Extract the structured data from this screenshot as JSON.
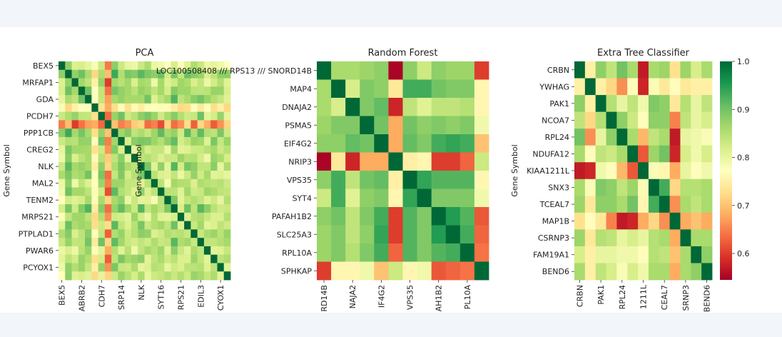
{
  "chart_data": [
    {
      "type": "heatmap",
      "title": "PCA",
      "ylabel": "Gene Symbol",
      "matrix_size": 26,
      "row_tick_labels": [
        "BEX5",
        "MRFAP1",
        "GDA",
        "PCDH7",
        "PPP1CB",
        "CREG2",
        "NLK",
        "MAL2",
        "TENM2",
        "MRPS21",
        "PTPLAD1",
        "PWAR6",
        "PCYOX1"
      ],
      "col_tick_labels": [
        "BEX5",
        "ABRB2",
        "CDH7",
        "SRP14",
        "NLK",
        "SYT16",
        "RPS21",
        "EDIL3",
        "CYOX1"
      ]
    },
    {
      "type": "heatmap",
      "title": "Random Forest",
      "ylabel": "Gene Symbol",
      "row_tick_labels": [
        "LOC100508408 /// RPS13 /// SNORD14B",
        "MAP4",
        "DNAJA2",
        "PSMA5",
        "EIF4G2",
        "NRIP3",
        "VPS35",
        "SYT4",
        "PAFAH1B2",
        "SLC25A3",
        "RPL10A",
        "SPHKAP"
      ],
      "col_tick_labels": [
        "RD14B",
        "NAJA2",
        "IF4G2",
        "VPS35",
        "AH1B2",
        "PL10A"
      ],
      "values": [
        [
          1.0,
          0.86,
          0.86,
          0.87,
          0.88,
          0.55,
          0.88,
          0.83,
          0.88,
          0.87,
          0.87,
          0.6
        ],
        [
          0.86,
          1.0,
          0.82,
          0.89,
          0.88,
          0.74,
          0.93,
          0.93,
          0.9,
          0.89,
          0.89,
          0.76
        ],
        [
          0.86,
          0.82,
          1.0,
          0.89,
          0.91,
          0.58,
          0.84,
          0.81,
          0.84,
          0.84,
          0.85,
          0.76
        ],
        [
          0.87,
          0.89,
          0.89,
          1.0,
          0.9,
          0.68,
          0.9,
          0.88,
          0.89,
          0.88,
          0.89,
          0.79
        ],
        [
          0.88,
          0.88,
          0.91,
          0.9,
          1.0,
          0.68,
          0.91,
          0.89,
          0.93,
          0.94,
          0.93,
          0.7
        ],
        [
          0.55,
          0.74,
          0.58,
          0.68,
          0.68,
          1.0,
          0.75,
          0.76,
          0.6,
          0.6,
          0.63,
          0.83
        ],
        [
          0.88,
          0.93,
          0.84,
          0.9,
          0.91,
          0.75,
          1.0,
          0.94,
          0.92,
          0.92,
          0.92,
          0.76
        ],
        [
          0.83,
          0.93,
          0.81,
          0.88,
          0.89,
          0.76,
          0.94,
          1.0,
          0.89,
          0.89,
          0.89,
          0.79
        ],
        [
          0.88,
          0.9,
          0.84,
          0.89,
          0.93,
          0.6,
          0.92,
          0.89,
          1.0,
          0.95,
          0.92,
          0.62
        ],
        [
          0.87,
          0.89,
          0.84,
          0.88,
          0.94,
          0.6,
          0.92,
          0.89,
          0.95,
          1.0,
          0.93,
          0.63
        ],
        [
          0.87,
          0.89,
          0.85,
          0.89,
          0.93,
          0.63,
          0.92,
          0.89,
          0.92,
          0.93,
          1.0,
          0.64
        ],
        [
          0.6,
          0.76,
          0.76,
          0.79,
          0.7,
          0.83,
          0.76,
          0.79,
          0.62,
          0.63,
          0.64,
          1.0
        ]
      ]
    },
    {
      "type": "heatmap",
      "title": "Extra Tree Classifier",
      "ylabel": "Gene Symbol",
      "row_tick_labels": [
        "CRBN",
        "YWHAG",
        "PAK1",
        "NCOA7",
        "RPL24",
        "NDUFA12",
        "KIAA1211L",
        "SNX3",
        "TCEAL7",
        "MAP1B",
        "CSRNP3",
        "FAM19A1",
        "BEND6"
      ],
      "col_tick_labels": [
        "CRBN",
        "PAK1",
        "RPL24",
        "1211L",
        "CEAL7",
        "SRNP3",
        "BEND6"
      ],
      "values": [
        [
          1.0,
          0.75,
          0.88,
          0.84,
          0.9,
          0.86,
          0.57,
          0.86,
          0.87,
          0.73,
          0.87,
          0.82,
          0.86
        ],
        [
          0.75,
          1.0,
          0.75,
          0.72,
          0.66,
          0.77,
          0.58,
          0.78,
          0.74,
          0.77,
          0.74,
          0.75,
          0.75
        ],
        [
          0.88,
          0.75,
          1.0,
          0.85,
          0.8,
          0.84,
          0.79,
          0.89,
          0.88,
          0.74,
          0.85,
          0.8,
          0.84
        ],
        [
          0.84,
          0.72,
          0.85,
          1.0,
          0.88,
          0.83,
          0.77,
          0.88,
          0.88,
          0.65,
          0.84,
          0.8,
          0.82
        ],
        [
          0.9,
          0.66,
          0.8,
          0.88,
          1.0,
          0.86,
          0.69,
          0.84,
          0.86,
          0.57,
          0.8,
          0.79,
          0.78
        ],
        [
          0.86,
          0.77,
          0.84,
          0.83,
          0.86,
          1.0,
          0.62,
          0.87,
          0.9,
          0.58,
          0.82,
          0.79,
          0.82
        ],
        [
          0.57,
          0.58,
          0.79,
          0.77,
          0.69,
          0.62,
          1.0,
          0.78,
          0.76,
          0.68,
          0.8,
          0.77,
          0.79
        ],
        [
          0.86,
          0.78,
          0.89,
          0.88,
          0.84,
          0.87,
          0.78,
          1.0,
          0.93,
          0.72,
          0.85,
          0.85,
          0.86
        ],
        [
          0.87,
          0.74,
          0.88,
          0.88,
          0.86,
          0.9,
          0.76,
          0.93,
          1.0,
          0.66,
          0.86,
          0.84,
          0.86
        ],
        [
          0.73,
          0.77,
          0.74,
          0.65,
          0.57,
          0.58,
          0.68,
          0.72,
          0.66,
          1.0,
          0.68,
          0.7,
          0.68
        ],
        [
          0.87,
          0.74,
          0.85,
          0.84,
          0.8,
          0.82,
          0.8,
          0.85,
          0.86,
          0.68,
          1.0,
          0.86,
          0.86
        ],
        [
          0.82,
          0.75,
          0.8,
          0.8,
          0.79,
          0.79,
          0.77,
          0.85,
          0.84,
          0.7,
          0.86,
          1.0,
          0.88
        ],
        [
          0.86,
          0.75,
          0.84,
          0.82,
          0.78,
          0.82,
          0.79,
          0.86,
          0.86,
          0.68,
          0.86,
          0.88,
          1.0
        ]
      ]
    }
  ],
  "colorbar": {
    "ticks": [
      1.0,
      0.9,
      0.8,
      0.7,
      0.6
    ],
    "tick_labels": [
      "1.0",
      "0.9",
      "0.8",
      "0.7",
      "0.6"
    ],
    "range": [
      0.545,
      1.0
    ],
    "colormap": "RdYlGn",
    "stops": [
      "#a50026",
      "#d73027",
      "#f46d43",
      "#fdae61",
      "#fee08b",
      "#ffffbf",
      "#d9ef8b",
      "#a6d96a",
      "#66bd63",
      "#1a9850",
      "#006837"
    ]
  },
  "colors": {
    "background": "#f2f5f9",
    "figure": "#ffffff",
    "text": "#222222"
  }
}
